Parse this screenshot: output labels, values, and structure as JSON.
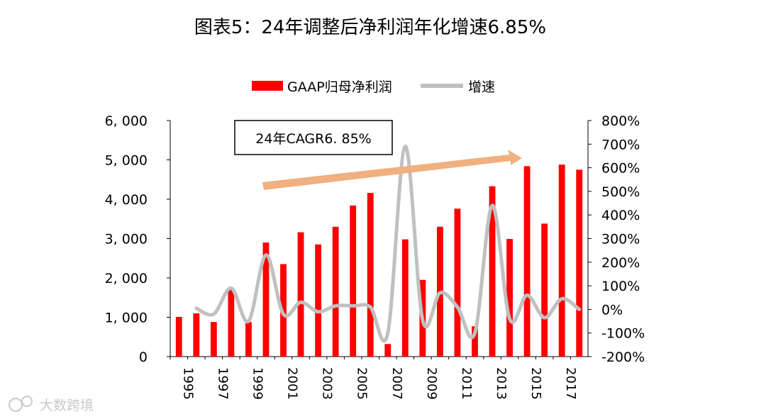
{
  "chart_data": {
    "type": "bar+line",
    "title": "图表5：24年调整后净利润年化增速6.85%",
    "categories": [
      "1995",
      "1996",
      "1997",
      "1998",
      "1999",
      "2000",
      "2001",
      "2002",
      "2003",
      "2004",
      "2005",
      "2006",
      "2007",
      "2008",
      "2009",
      "2010",
      "2011",
      "2012",
      "2013",
      "2014",
      "2015",
      "2016",
      "2017",
      "2018"
    ],
    "x_tick_labels": [
      "1995",
      "1997",
      "1999",
      "2001",
      "2003",
      "2005",
      "2007",
      "2009",
      "2011",
      "2013",
      "2015",
      "2017"
    ],
    "series": [
      {
        "name": "GAAP归母净利润",
        "type": "bar",
        "axis": "left",
        "color": "#ff0000",
        "values": [
          1010,
          1100,
          880,
          1700,
          880,
          2900,
          2350,
          3160,
          2850,
          3300,
          3840,
          4160,
          320,
          2980,
          1950,
          3300,
          3760,
          770,
          4330,
          2990,
          4840,
          3380,
          4880,
          4750
        ]
      },
      {
        "name": "增速",
        "type": "line",
        "axis": "right",
        "color": "#c0c0c0",
        "values": [
          null,
          5,
          -20,
          90,
          -50,
          230,
          -20,
          30,
          -10,
          15,
          15,
          10,
          -100,
          690,
          -45,
          70,
          10,
          -100,
          440,
          -40,
          60,
          -35,
          45,
          0
        ]
      }
    ],
    "left_axis": {
      "ylim": [
        0,
        6000
      ],
      "ticks": [
        "0",
        "1, 000",
        "2, 000",
        "3, 000",
        "4, 000",
        "5, 000",
        "6, 000"
      ]
    },
    "right_axis": {
      "ylim": [
        -200,
        800
      ],
      "ticks": [
        "-200%",
        "-100%",
        "0%",
        "100%",
        "200%",
        "300%",
        "400%",
        "500%",
        "600%",
        "700%",
        "800%"
      ]
    },
    "annotation": {
      "text": "24年CAGR6. 85%"
    },
    "legend": {
      "position": "top-center",
      "entries": [
        "GAAP归母净利润",
        "增速"
      ]
    },
    "trend_arrow_color": "#f0b07f"
  },
  "watermark": {
    "text": "大数跨境"
  }
}
